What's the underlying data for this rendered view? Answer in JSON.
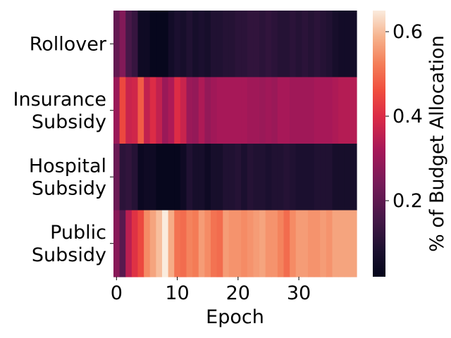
{
  "chart_data": {
    "type": "heatmap",
    "title": "",
    "xlabel": "Epoch",
    "ylabel": "",
    "rows": [
      "Rollover",
      "Insurance\nSubsidy",
      "Hospital\nSubsidy",
      "Public\nSubsidy"
    ],
    "x": [
      0,
      1,
      2,
      3,
      4,
      5,
      6,
      7,
      8,
      9,
      10,
      11,
      12,
      13,
      14,
      15,
      16,
      17,
      18,
      19,
      20,
      21,
      22,
      23,
      24,
      25,
      26,
      27,
      28,
      29,
      30,
      31,
      32,
      33,
      34,
      35,
      36,
      37,
      38,
      39
    ],
    "xticks": [
      0,
      10,
      20,
      30
    ],
    "values": [
      [
        0.21,
        0.26,
        0.16,
        0.13,
        0.05,
        0.05,
        0.03,
        0.03,
        0.03,
        0.06,
        0.08,
        0.07,
        0.09,
        0.07,
        0.08,
        0.07,
        0.09,
        0.09,
        0.1,
        0.1,
        0.11,
        0.11,
        0.12,
        0.12,
        0.11,
        0.12,
        0.11,
        0.1,
        0.1,
        0.11,
        0.1,
        0.11,
        0.1,
        0.11,
        0.1,
        0.09,
        0.07,
        0.06,
        0.06,
        0.06
      ],
      [
        0.3,
        0.45,
        0.37,
        0.38,
        0.48,
        0.36,
        0.4,
        0.36,
        0.3,
        0.33,
        0.4,
        0.37,
        0.3,
        0.29,
        0.33,
        0.29,
        0.31,
        0.32,
        0.32,
        0.32,
        0.32,
        0.32,
        0.31,
        0.31,
        0.3,
        0.31,
        0.3,
        0.32,
        0.32,
        0.31,
        0.31,
        0.31,
        0.31,
        0.32,
        0.32,
        0.32,
        0.33,
        0.34,
        0.34,
        0.34
      ],
      [
        0.22,
        0.11,
        0.12,
        0.1,
        0.04,
        0.05,
        0.05,
        0.03,
        0.03,
        0.03,
        0.03,
        0.05,
        0.09,
        0.07,
        0.07,
        0.05,
        0.07,
        0.07,
        0.09,
        0.09,
        0.1,
        0.08,
        0.1,
        0.09,
        0.09,
        0.08,
        0.09,
        0.09,
        0.1,
        0.09,
        0.08,
        0.08,
        0.08,
        0.09,
        0.09,
        0.09,
        0.07,
        0.07,
        0.07,
        0.07
      ],
      [
        0.27,
        0.19,
        0.35,
        0.41,
        0.45,
        0.54,
        0.57,
        0.6,
        0.65,
        0.58,
        0.51,
        0.5,
        0.53,
        0.52,
        0.56,
        0.54,
        0.51,
        0.5,
        0.56,
        0.55,
        0.55,
        0.54,
        0.55,
        0.56,
        0.57,
        0.55,
        0.55,
        0.53,
        0.5,
        0.54,
        0.56,
        0.56,
        0.55,
        0.55,
        0.56,
        0.55,
        0.57,
        0.57,
        0.57,
        0.57
      ]
    ],
    "colorbar": {
      "label": "% of Budget Allocation",
      "ticks": [
        0.2,
        0.4,
        0.6
      ],
      "range": [
        0.02,
        0.65
      ],
      "colormap": "rocket"
    }
  }
}
